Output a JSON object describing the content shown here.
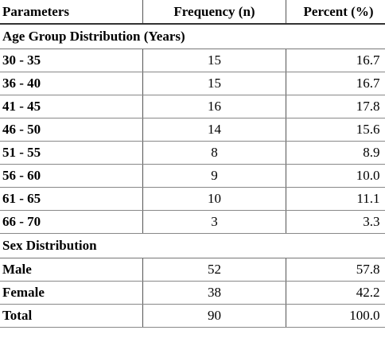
{
  "table": {
    "headers": {
      "parameters": "Parameters",
      "frequency": "Frequency (n)",
      "percent": "Percent (%)"
    },
    "sections": [
      {
        "title": "Age Group Distribution (Years)",
        "rows": [
          {
            "label": "30 - 35",
            "frequency": "15",
            "percent": "16.7"
          },
          {
            "label": "36 - 40",
            "frequency": "15",
            "percent": "16.7"
          },
          {
            "label": "41 - 45",
            "frequency": "16",
            "percent": "17.8"
          },
          {
            "label": "46 - 50",
            "frequency": "14",
            "percent": "15.6"
          },
          {
            "label": "51 - 55",
            "frequency": "8",
            "percent": "8.9"
          },
          {
            "label": "56 - 60",
            "frequency": "9",
            "percent": "10.0"
          },
          {
            "label": "61 - 65",
            "frequency": "10",
            "percent": "11.1"
          },
          {
            "label": "66 - 70",
            "frequency": "3",
            "percent": "3.3"
          }
        ]
      },
      {
        "title": "Sex Distribution",
        "rows": [
          {
            "label": "Male",
            "frequency": "52",
            "percent": "57.8"
          },
          {
            "label": "Female",
            "frequency": "38",
            "percent": "42.2"
          }
        ]
      }
    ],
    "total": {
      "label": "Total",
      "frequency": "90",
      "percent": "100.0"
    }
  }
}
